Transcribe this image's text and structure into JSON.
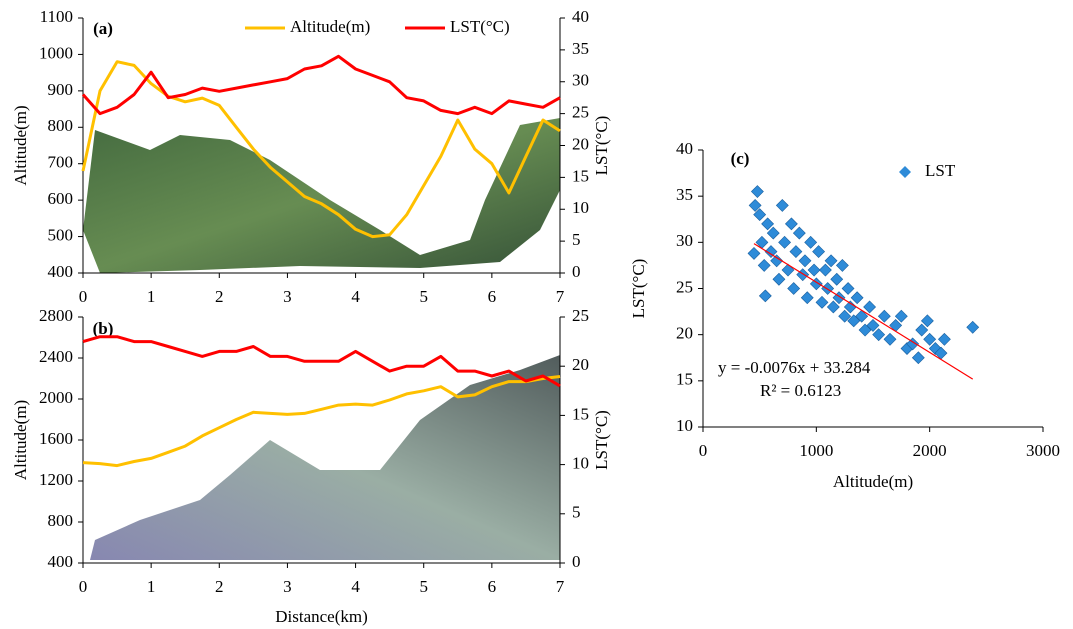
{
  "chart_data": [
    {
      "type": "line",
      "label": "(a)",
      "legend": "top",
      "x": [
        0,
        0.25,
        0.5,
        0.75,
        1,
        1.25,
        1.5,
        1.75,
        2,
        2.25,
        2.5,
        2.75,
        3,
        3.25,
        3.5,
        3.75,
        4,
        4.25,
        4.5,
        4.75,
        5,
        5.25,
        5.5,
        5.75,
        6,
        6.25,
        6.5,
        6.75,
        7
      ],
      "xlim": [
        0,
        7
      ],
      "xticks": [
        0,
        1,
        2,
        3,
        4,
        5,
        6,
        7
      ],
      "ylim": [
        400,
        1100
      ],
      "yticks": [
        400,
        500,
        600,
        700,
        800,
        900,
        1000,
        1100
      ],
      "y2lim": [
        0,
        40
      ],
      "y2ticks": [
        0,
        5,
        10,
        15,
        20,
        25,
        30,
        35,
        40
      ],
      "ylabel": "Altitude(m)",
      "y2label": "LST(°C)",
      "series": [
        {
          "name": "Altitude(m)",
          "color": "#ffc000",
          "values": [
            680,
            900,
            980,
            970,
            920,
            885,
            870,
            880,
            860,
            800,
            740,
            690,
            650,
            610,
            590,
            560,
            520,
            500,
            505,
            560,
            640,
            720,
            820,
            740,
            700,
            620,
            720,
            820,
            790
          ]
        },
        {
          "name": "LST(°C)",
          "color": "#ff0000",
          "axis": "y2",
          "values": [
            28,
            25,
            26,
            28,
            31.5,
            27.5,
            28,
            29,
            28.5,
            29,
            29.5,
            30,
            30.5,
            32,
            32.5,
            34,
            32,
            31,
            30,
            27.5,
            27,
            25.5,
            25,
            26,
            25,
            27,
            26.5,
            26,
            27.5
          ]
        }
      ]
    },
    {
      "type": "line",
      "label": "(b)",
      "x": [
        0,
        0.25,
        0.5,
        0.75,
        1,
        1.25,
        1.5,
        1.75,
        2,
        2.25,
        2.5,
        2.75,
        3,
        3.25,
        3.5,
        3.75,
        4,
        4.25,
        4.5,
        4.75,
        5,
        5.25,
        5.5,
        5.75,
        6,
        6.25,
        6.5,
        6.75,
        7
      ],
      "xlim": [
        0,
        7
      ],
      "xticks": [
        0,
        1,
        2,
        3,
        4,
        5,
        6,
        7
      ],
      "xlabel": "Distance(km)",
      "ylim": [
        400,
        2800
      ],
      "yticks": [
        400,
        800,
        1200,
        1600,
        2000,
        2400,
        2800
      ],
      "y2lim": [
        0,
        25
      ],
      "y2ticks": [
        0,
        5,
        10,
        15,
        20,
        25
      ],
      "ylabel": "Altitude(m)",
      "y2label": "LST(°C)",
      "series": [
        {
          "color": "#ffc000",
          "values": [
            1380,
            1370,
            1350,
            1390,
            1420,
            1480,
            1540,
            1640,
            1720,
            1800,
            1870,
            1860,
            1850,
            1860,
            1900,
            1940,
            1950,
            1940,
            1990,
            2050,
            2080,
            2120,
            2020,
            2040,
            2120,
            2170,
            2170,
            2200,
            2220
          ]
        },
        {
          "color": "#ff0000",
          "axis": "y2",
          "values": [
            22.5,
            23,
            23,
            22.5,
            22.5,
            22,
            21.5,
            21,
            21.5,
            21.5,
            22,
            21,
            21,
            20.5,
            20.5,
            20.5,
            21.5,
            20.5,
            19.5,
            20,
            20,
            21,
            19.5,
            19.5,
            19,
            19.5,
            18.5,
            19,
            18
          ]
        }
      ]
    },
    {
      "type": "scatter",
      "label": "(c)",
      "legend": "top-right",
      "x": [
        450,
        460,
        480,
        500,
        520,
        540,
        550,
        570,
        600,
        620,
        650,
        670,
        700,
        720,
        750,
        780,
        800,
        820,
        850,
        880,
        900,
        920,
        950,
        980,
        1000,
        1020,
        1050,
        1080,
        1100,
        1130,
        1150,
        1180,
        1200,
        1230,
        1250,
        1280,
        1300,
        1330,
        1360,
        1400,
        1430,
        1470,
        1500,
        1550,
        1600,
        1650,
        1700,
        1750,
        1800,
        1850,
        1900,
        1930,
        1980,
        2000,
        2050,
        2100,
        2130,
        2380
      ],
      "xlim": [
        0,
        3000
      ],
      "xticks": [
        0,
        1000,
        2000,
        3000
      ],
      "xlabel": "Altitude(m)",
      "ylim": [
        10,
        40
      ],
      "yticks": [
        10,
        15,
        20,
        25,
        30,
        35,
        40
      ],
      "ylabel": "LST(°C)",
      "series": [
        {
          "name": "LST",
          "color": "#2e8bd8",
          "values": [
            28.8,
            34,
            35.5,
            33,
            30,
            27.5,
            24.2,
            32,
            29,
            31,
            28,
            26,
            34,
            30,
            27,
            32,
            25,
            29,
            31,
            26.5,
            28,
            24,
            30,
            27,
            25.5,
            29,
            23.5,
            27,
            25,
            28,
            23,
            26,
            24,
            27.5,
            22,
            25,
            23,
            21.5,
            24,
            22,
            20.5,
            23,
            21,
            20,
            22,
            19.5,
            21,
            22,
            18.5,
            19,
            17.5,
            20.5,
            21.5,
            19.5,
            18.5,
            18,
            19.5,
            20.8
          ]
        }
      ],
      "trendline": {
        "color": "#ff0000",
        "x": [
          450,
          2380
        ],
        "y": [
          29.86,
          15.19
        ]
      },
      "annotations": [
        "y = -0.0076x + 33.284",
        "R² = 0.6123"
      ]
    }
  ]
}
